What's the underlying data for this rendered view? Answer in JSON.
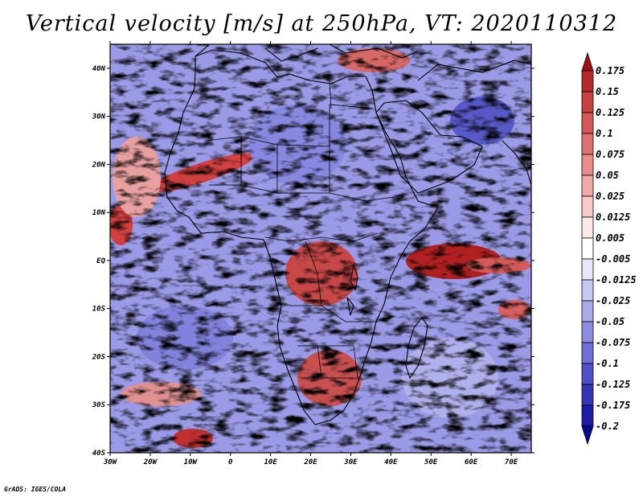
{
  "title": "Vertical velocity [m/s] at 250hPa, VT: 2020110312",
  "credit": "GrADS: IGES/COLA",
  "map": {
    "variable": "Vertical velocity",
    "units": "m/s",
    "level": "250hPa",
    "valid_time": "2020110312",
    "lon_range": [
      -30,
      75
    ],
    "lat_range": [
      -40,
      45
    ],
    "lat_labels": [
      "40N",
      "30N",
      "20N",
      "10N",
      "EQ",
      "10S",
      "20S",
      "30S",
      "40S"
    ],
    "lat_values": [
      40,
      30,
      20,
      10,
      0,
      -10,
      -20,
      -30,
      -40
    ],
    "lon_labels": [
      "30W",
      "20W",
      "10W",
      "0",
      "10E",
      "20E",
      "30E",
      "40E",
      "50E",
      "60E",
      "70E"
    ],
    "lon_values": [
      -30,
      -20,
      -10,
      0,
      10,
      20,
      30,
      40,
      50,
      60,
      70
    ]
  },
  "colorbar": {
    "labels": [
      "0.175",
      "0.15",
      "0.125",
      "0.1",
      "0.075",
      "0.05",
      "0.025",
      "0.0125",
      "0.005",
      "-0.005",
      "-0.0125",
      "-0.025",
      "-0.05",
      "-0.075",
      "-0.1",
      "-0.125",
      "-0.175",
      "-0.2"
    ],
    "colors": [
      "#a01010",
      "#b82a2a",
      "#c84040",
      "#d45858",
      "#de7272",
      "#e88c8c",
      "#f0a8a8",
      "#f6c8c8",
      "#fde8e8",
      "#ffffff",
      "#e8e8fa",
      "#c8c8f2",
      "#aaaaea",
      "#8c8ce0",
      "#6e6ed6",
      "#5050c8",
      "#3434b8",
      "#1c1ca6",
      "#0a0a90"
    ]
  }
}
